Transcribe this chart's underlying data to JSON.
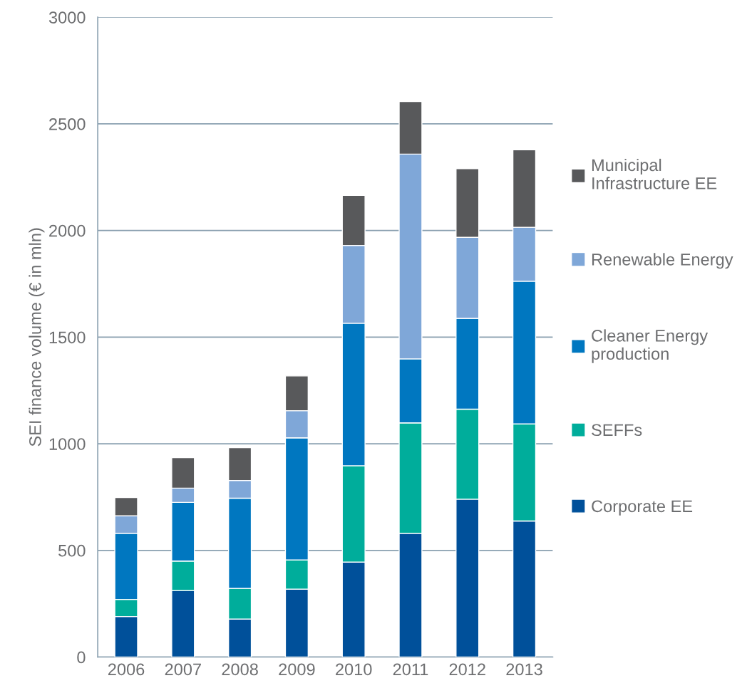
{
  "chart_data": {
    "type": "bar",
    "stacked": true,
    "ylabel": "SEI finance volume (€ in mln)",
    "categories": [
      "2006",
      "2007",
      "2008",
      "2009",
      "2010",
      "2011",
      "2012",
      "2013"
    ],
    "series": [
      {
        "name": "Corporate EE",
        "color": "#00509a",
        "values": [
          190,
          312,
          178,
          318,
          445,
          580,
          740,
          638
        ]
      },
      {
        "name": "SEFFs",
        "color": "#00ad9b",
        "values": [
          80,
          138,
          144,
          137,
          452,
          518,
          422,
          455
        ]
      },
      {
        "name": "Cleaner Energy\nproduction",
        "color": "#0077c0",
        "values": [
          310,
          275,
          423,
          573,
          668,
          300,
          426,
          669
        ]
      },
      {
        "name": "Renewable Energy",
        "color": "#7fa7d8",
        "values": [
          82,
          67,
          83,
          127,
          365,
          960,
          380,
          253
        ]
      },
      {
        "name": "Municipal\nInfrastructure EE",
        "color": "#58595b",
        "values": [
          86,
          143,
          154,
          163,
          235,
          247,
          322,
          363
        ]
      }
    ],
    "ylim": [
      0,
      3000
    ],
    "yticks": [
      0,
      500,
      1000,
      1500,
      2000,
      2500,
      3000
    ],
    "grid": "y",
    "legend": "right"
  }
}
